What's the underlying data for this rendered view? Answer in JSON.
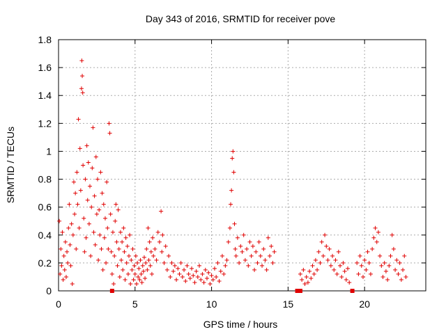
{
  "chart_data": {
    "type": "scatter",
    "title": "Day 343 of 2016, SRMTID for receiver pove",
    "xlabel": "GPS time / hours",
    "ylabel": "SRMTID / TECUs",
    "xlim": [
      0,
      24
    ],
    "ylim": [
      0,
      1.8
    ],
    "grid": true,
    "marker": "+",
    "color": "#e00000",
    "xticks": [
      0,
      5,
      10,
      15,
      20
    ],
    "xtick_labels": [
      "0",
      "5",
      "10",
      "15",
      "20"
    ],
    "yticks": [
      0,
      0.2,
      0.4,
      0.6,
      0.8,
      1.0,
      1.2,
      1.4,
      1.6,
      1.8
    ],
    "ytick_labels": [
      "0",
      "0.2",
      "0.4",
      "0.6",
      "0.8",
      "1",
      "1.2",
      "1.4",
      "1.6",
      "1.8"
    ],
    "points": [
      [
        0.05,
        0.5
      ],
      [
        0.1,
        0.12
      ],
      [
        0.15,
        0.3
      ],
      [
        0.2,
        0.18
      ],
      [
        0.25,
        0.42
      ],
      [
        0.3,
        0.08
      ],
      [
        0.35,
        0.25
      ],
      [
        0.4,
        0.15
      ],
      [
        0.45,
        0.35
      ],
      [
        0.5,
        0.1
      ],
      [
        0.55,
        0.28
      ],
      [
        0.6,
        0.2
      ],
      [
        0.65,
        0.45
      ],
      [
        0.7,
        0.62
      ],
      [
        0.75,
        0.33
      ],
      [
        0.8,
        0.18
      ],
      [
        0.85,
        0.48
      ],
      [
        0.9,
        0.05
      ],
      [
        0.95,
        0.4
      ],
      [
        1.0,
        0.78
      ],
      [
        1.05,
        0.55
      ],
      [
        1.1,
        0.7
      ],
      [
        1.15,
        0.3
      ],
      [
        1.2,
        0.85
      ],
      [
        1.25,
        0.62
      ],
      [
        1.3,
        1.23
      ],
      [
        1.35,
        0.45
      ],
      [
        1.4,
        1.02
      ],
      [
        1.45,
        0.72
      ],
      [
        1.5,
        1.45
      ],
      [
        1.52,
        1.65
      ],
      [
        1.55,
        1.54
      ],
      [
        1.58,
        1.42
      ],
      [
        1.6,
        0.9
      ],
      [
        1.65,
        0.52
      ],
      [
        1.7,
        0.28
      ],
      [
        1.75,
        0.8
      ],
      [
        1.8,
        0.38
      ],
      [
        1.85,
        1.04
      ],
      [
        1.9,
        0.65
      ],
      [
        1.95,
        0.92
      ],
      [
        2.0,
        0.48
      ],
      [
        2.05,
        0.75
      ],
      [
        2.1,
        0.25
      ],
      [
        2.15,
        0.6
      ],
      [
        2.2,
        0.88
      ],
      [
        2.25,
        1.17
      ],
      [
        2.3,
        0.42
      ],
      [
        2.35,
        0.68
      ],
      [
        2.4,
        0.33
      ],
      [
        2.45,
        0.96
      ],
      [
        2.5,
        0.55
      ],
      [
        2.55,
        0.8
      ],
      [
        2.6,
        0.22
      ],
      [
        2.65,
        0.58
      ],
      [
        2.7,
        0.4
      ],
      [
        2.75,
        0.85
      ],
      [
        2.8,
        0.3
      ],
      [
        2.85,
        0.7
      ],
      [
        2.9,
        0.15
      ],
      [
        2.95,
        0.62
      ],
      [
        3.0,
        0.38
      ],
      [
        3.05,
        0.52
      ],
      [
        3.1,
        0.2
      ],
      [
        3.15,
        0.78
      ],
      [
        3.2,
        0.45
      ],
      [
        3.25,
        0.3
      ],
      [
        3.3,
        1.2
      ],
      [
        3.35,
        1.13
      ],
      [
        3.4,
        0.55
      ],
      [
        3.45,
        0.28
      ],
      [
        3.5,
        0.12
      ],
      [
        3.55,
        0.42
      ],
      [
        3.6,
        0.05
      ],
      [
        3.65,
        0.25
      ],
      [
        3.7,
        0.5
      ],
      [
        3.75,
        0.62
      ],
      [
        3.8,
        0.35
      ],
      [
        3.85,
        0.18
      ],
      [
        3.9,
        0.58
      ],
      [
        3.95,
        0.3
      ],
      [
        4.0,
        0.1
      ],
      [
        4.05,
        0.42
      ],
      [
        4.1,
        0.22
      ],
      [
        4.15,
        0.35
      ],
      [
        4.2,
        0.15
      ],
      [
        4.25,
        0.45
      ],
      [
        4.3,
        0.28
      ],
      [
        4.35,
        0.08
      ],
      [
        4.4,
        0.38
      ],
      [
        4.45,
        0.2
      ],
      [
        4.5,
        0.32
      ],
      [
        4.55,
        0.12
      ],
      [
        4.6,
        0.25
      ],
      [
        4.65,
        0.4
      ],
      [
        4.7,
        0.05
      ],
      [
        4.75,
        0.22
      ],
      [
        4.8,
        0.15
      ],
      [
        4.85,
        0.3
      ],
      [
        4.9,
        0.08
      ],
      [
        4.95,
        0.18
      ],
      [
        5.0,
        0.12
      ],
      [
        5.05,
        0.25
      ],
      [
        5.1,
        0.05
      ],
      [
        5.15,
        0.2
      ],
      [
        5.2,
        0.1
      ],
      [
        5.25,
        0.16
      ],
      [
        5.3,
        0.08
      ],
      [
        5.35,
        0.22
      ],
      [
        5.4,
        0.12
      ],
      [
        5.45,
        0.06
      ],
      [
        5.5,
        0.18
      ],
      [
        5.55,
        0.14
      ],
      [
        5.6,
        0.24
      ],
      [
        5.65,
        0.09
      ],
      [
        5.7,
        0.2
      ],
      [
        5.75,
        0.3
      ],
      [
        5.8,
        0.15
      ],
      [
        5.85,
        0.45
      ],
      [
        5.9,
        0.22
      ],
      [
        5.95,
        0.35
      ],
      [
        6.0,
        0.18
      ],
      [
        6.05,
        0.28
      ],
      [
        6.1,
        0.12
      ],
      [
        6.15,
        0.38
      ],
      [
        6.2,
        0.25
      ],
      [
        6.3,
        0.3
      ],
      [
        6.4,
        0.22
      ],
      [
        6.5,
        0.42
      ],
      [
        6.6,
        0.35
      ],
      [
        6.7,
        0.57
      ],
      [
        6.75,
        0.28
      ],
      [
        6.8,
        0.4
      ],
      [
        6.9,
        0.2
      ],
      [
        7.0,
        0.32
      ],
      [
        7.1,
        0.15
      ],
      [
        7.2,
        0.25
      ],
      [
        7.3,
        0.1
      ],
      [
        7.4,
        0.2
      ],
      [
        7.5,
        0.14
      ],
      [
        7.6,
        0.18
      ],
      [
        7.7,
        0.08
      ],
      [
        7.8,
        0.16
      ],
      [
        7.9,
        0.12
      ],
      [
        8.0,
        0.2
      ],
      [
        8.1,
        0.1
      ],
      [
        8.2,
        0.15
      ],
      [
        8.3,
        0.07
      ],
      [
        8.4,
        0.18
      ],
      [
        8.5,
        0.12
      ],
      [
        8.6,
        0.09
      ],
      [
        8.7,
        0.16
      ],
      [
        8.8,
        0.11
      ],
      [
        8.9,
        0.06
      ],
      [
        9.0,
        0.14
      ],
      [
        9.1,
        0.1
      ],
      [
        9.2,
        0.18
      ],
      [
        9.3,
        0.08
      ],
      [
        9.4,
        0.12
      ],
      [
        9.5,
        0.06
      ],
      [
        9.6,
        0.15
      ],
      [
        9.7,
        0.09
      ],
      [
        9.8,
        0.13
      ],
      [
        9.9,
        0.05
      ],
      [
        10.0,
        0.11
      ],
      [
        10.1,
        0.08
      ],
      [
        10.2,
        0.16
      ],
      [
        10.3,
        0.1
      ],
      [
        10.4,
        0.2
      ],
      [
        10.5,
        0.07
      ],
      [
        10.6,
        0.14
      ],
      [
        10.7,
        0.25
      ],
      [
        10.8,
        0.12
      ],
      [
        10.9,
        0.18
      ],
      [
        11.0,
        0.22
      ],
      [
        11.1,
        0.35
      ],
      [
        11.2,
        0.45
      ],
      [
        11.25,
        0.62
      ],
      [
        11.3,
        0.72
      ],
      [
        11.35,
        0.95
      ],
      [
        11.4,
        1.0
      ],
      [
        11.45,
        0.85
      ],
      [
        11.5,
        0.48
      ],
      [
        11.55,
        0.3
      ],
      [
        11.6,
        0.25
      ],
      [
        11.7,
        0.38
      ],
      [
        11.8,
        0.2
      ],
      [
        11.9,
        0.32
      ],
      [
        12.0,
        0.28
      ],
      [
        12.1,
        0.4
      ],
      [
        12.2,
        0.22
      ],
      [
        12.3,
        0.3
      ],
      [
        12.4,
        0.18
      ],
      [
        12.5,
        0.35
      ],
      [
        12.6,
        0.25
      ],
      [
        12.7,
        0.32
      ],
      [
        12.8,
        0.15
      ],
      [
        12.9,
        0.28
      ],
      [
        13.0,
        0.2
      ],
      [
        13.1,
        0.35
      ],
      [
        13.2,
        0.25
      ],
      [
        13.3,
        0.18
      ],
      [
        13.4,
        0.3
      ],
      [
        13.5,
        0.22
      ],
      [
        13.6,
        0.15
      ],
      [
        13.7,
        0.38
      ],
      [
        13.8,
        0.25
      ],
      [
        13.9,
        0.32
      ],
      [
        14.0,
        0.2
      ],
      [
        14.1,
        0.28
      ],
      [
        15.8,
        0.12
      ],
      [
        15.9,
        0.08
      ],
      [
        16.0,
        0.15
      ],
      [
        16.1,
        0.05
      ],
      [
        16.2,
        0.1
      ],
      [
        16.3,
        0.06
      ],
      [
        16.4,
        0.14
      ],
      [
        16.5,
        0.09
      ],
      [
        16.6,
        0.18
      ],
      [
        16.7,
        0.12
      ],
      [
        16.8,
        0.22
      ],
      [
        16.9,
        0.15
      ],
      [
        17.0,
        0.28
      ],
      [
        17.1,
        0.2
      ],
      [
        17.2,
        0.35
      ],
      [
        17.3,
        0.25
      ],
      [
        17.4,
        0.4
      ],
      [
        17.5,
        0.32
      ],
      [
        17.6,
        0.22
      ],
      [
        17.7,
        0.3
      ],
      [
        17.8,
        0.18
      ],
      [
        17.9,
        0.25
      ],
      [
        18.0,
        0.15
      ],
      [
        18.1,
        0.22
      ],
      [
        18.2,
        0.12
      ],
      [
        18.3,
        0.28
      ],
      [
        18.4,
        0.18
      ],
      [
        18.5,
        0.1
      ],
      [
        18.6,
        0.2
      ],
      [
        18.7,
        0.14
      ],
      [
        18.8,
        0.08
      ],
      [
        18.9,
        0.16
      ],
      [
        19.0,
        0.06
      ],
      [
        19.5,
        0.2
      ],
      [
        19.6,
        0.12
      ],
      [
        19.7,
        0.25
      ],
      [
        19.8,
        0.18
      ],
      [
        19.9,
        0.1
      ],
      [
        20.0,
        0.22
      ],
      [
        20.1,
        0.15
      ],
      [
        20.2,
        0.28
      ],
      [
        20.3,
        0.2
      ],
      [
        20.4,
        0.12
      ],
      [
        20.5,
        0.3
      ],
      [
        20.6,
        0.38
      ],
      [
        20.7,
        0.45
      ],
      [
        20.8,
        0.35
      ],
      [
        20.9,
        0.42
      ],
      [
        21.0,
        0.25
      ],
      [
        21.1,
        0.18
      ],
      [
        21.2,
        0.1
      ],
      [
        21.3,
        0.2
      ],
      [
        21.4,
        0.14
      ],
      [
        21.5,
        0.08
      ],
      [
        21.6,
        0.18
      ],
      [
        21.7,
        0.25
      ],
      [
        21.8,
        0.4
      ],
      [
        21.9,
        0.3
      ],
      [
        22.0,
        0.15
      ],
      [
        22.1,
        0.22
      ],
      [
        22.2,
        0.12
      ],
      [
        22.3,
        0.2
      ],
      [
        22.4,
        0.08
      ],
      [
        22.5,
        0.15
      ],
      [
        22.6,
        0.25
      ],
      [
        22.7,
        0.1
      ]
    ],
    "zero_markers": [
      3.5,
      15.6,
      15.7,
      15.8,
      19.2
    ]
  }
}
